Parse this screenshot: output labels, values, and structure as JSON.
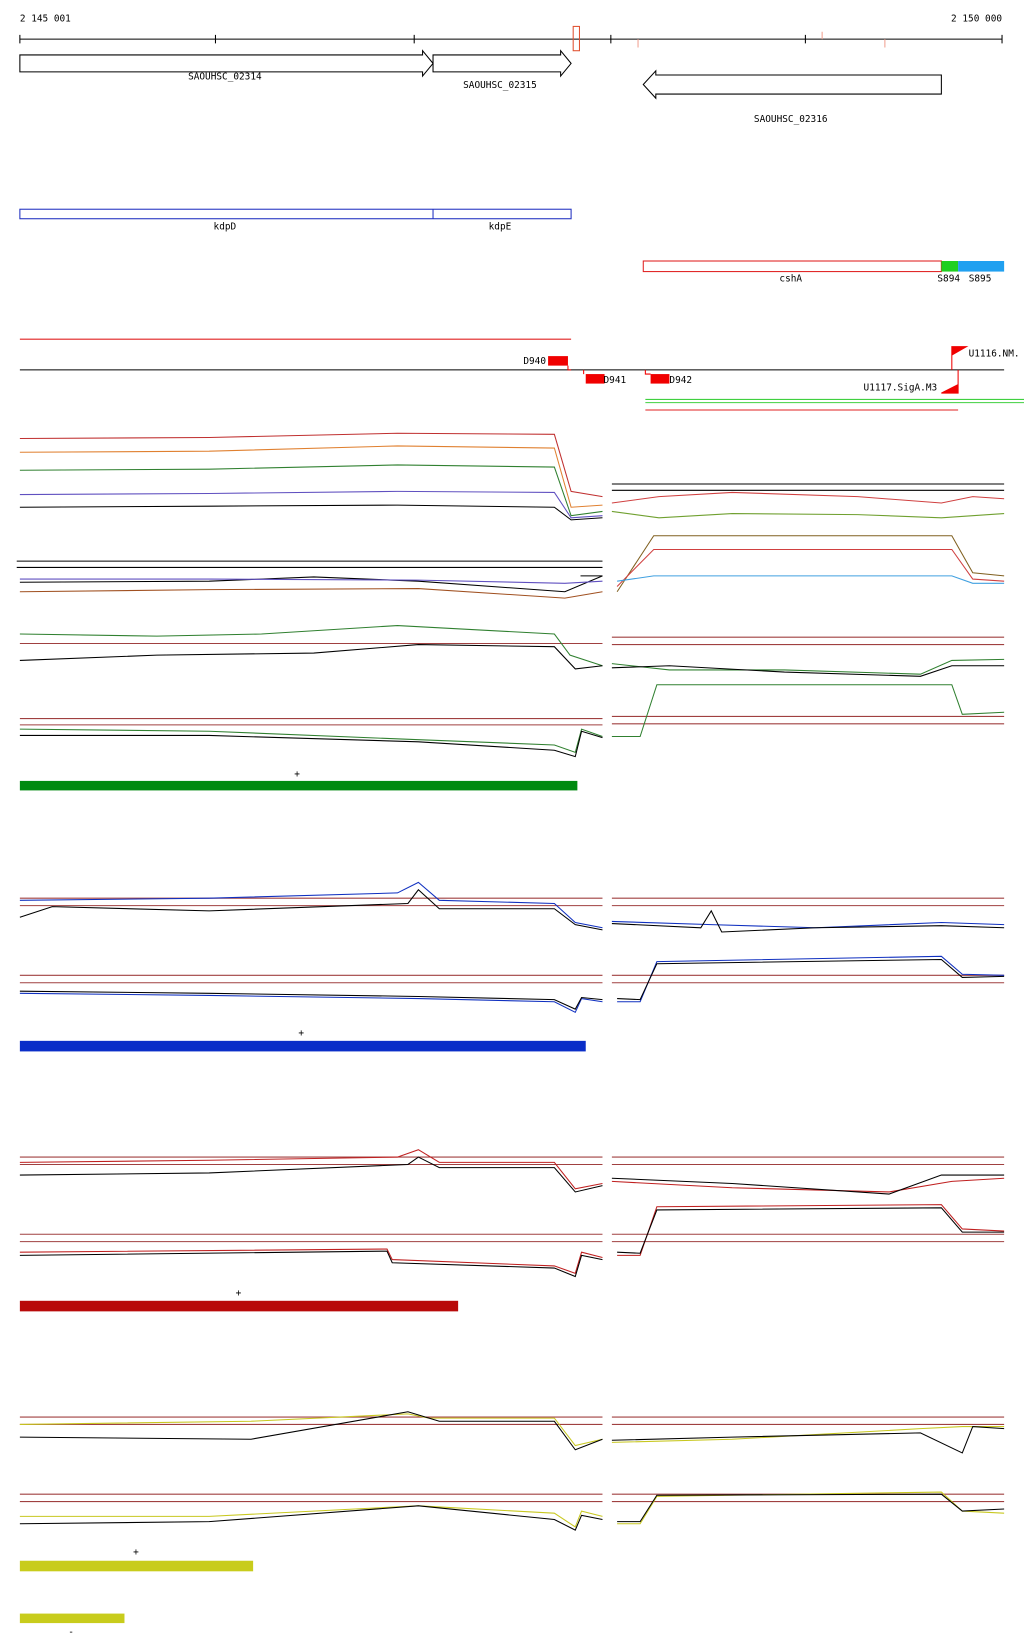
{
  "axis": {
    "start": "2 145 001",
    "end": "2 150 000"
  },
  "genes": [
    "SAOUHSC_02314",
    "SAOUHSC_02315",
    "SAOUHSC_02316"
  ],
  "operons": [
    "kdpD",
    "kdpE"
  ],
  "features": [
    "cshA",
    "S894",
    "S895"
  ],
  "segments": [
    "D940",
    "D941",
    "D942"
  ],
  "promoters": [
    "U1116.NM.",
    "U1117.SigA.M3"
  ],
  "strands": [
    "+",
    "+",
    "+",
    "+",
    "-"
  ]
}
